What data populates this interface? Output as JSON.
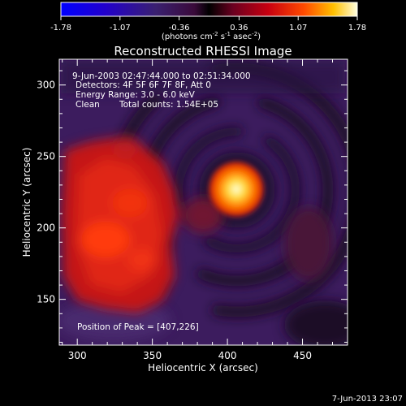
{
  "chart_data": {
    "type": "heatmap",
    "title": "Reconstructed RHESSI Image",
    "xlabel": "Heliocentric X (arcsec)",
    "ylabel": "Heliocentric Y (arcsec)",
    "xlim": [
      288,
      480
    ],
    "ylim": [
      118,
      318
    ],
    "xticks": [
      300,
      350,
      400,
      450
    ],
    "yticks": [
      150,
      200,
      250,
      300
    ],
    "colorbar": {
      "min": -1.78,
      "max": 1.78,
      "ticks": [
        "-1.78",
        "-1.07",
        "-0.36",
        "0.36",
        "1.07",
        "1.78"
      ],
      "unit_label": "(photons cm",
      "unit_exp1": "-2",
      "unit_mid": " s",
      "unit_exp2": "-1",
      "unit_mid2": " asec",
      "unit_exp3": "-2",
      "unit_end": ")"
    },
    "annotations": {
      "time": "9-Jun-2003 02:47:44.000 to 02:51:34.000",
      "detectors": "Detectors: 4F 5F 6F 7F 8F, Att 0",
      "energy": "Energy Range: 3.0 - 6.0 keV",
      "clean": "Clean",
      "counts": "Total counts: 1.54E+05",
      "peak": "Position of Peak = [407,226]"
    },
    "peak": {
      "x": 407,
      "y": 226
    },
    "footer": "7-Jun-2013 23:07"
  }
}
